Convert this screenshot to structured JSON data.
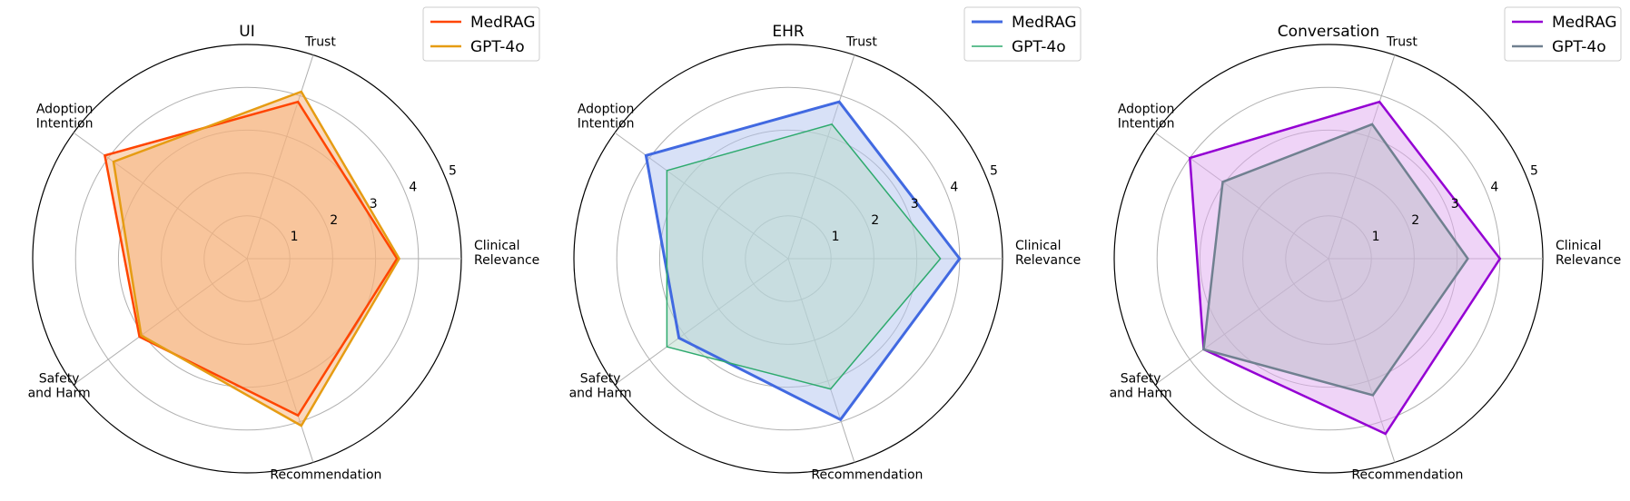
{
  "chart_data": [
    {
      "type": "radar",
      "title": "UI",
      "axes": [
        "Clinical\nRelevance",
        "Trust",
        "Adoption\nIntention",
        "Safety\nand Harm",
        "Recommendation"
      ],
      "rlim": [
        0,
        5
      ],
      "rticks": [
        1,
        2,
        3,
        4,
        5
      ],
      "grid": true,
      "legend_position": "top-right",
      "series": [
        {
          "name": "MedRAG",
          "values": [
            3.5,
            3.85,
            4.1,
            3.1,
            3.85
          ],
          "color": "#ff4500",
          "line_width": 2.5,
          "fill": "#f5b17b"
        },
        {
          "name": "GPT-4o",
          "values": [
            3.55,
            4.1,
            3.85,
            3.05,
            4.1
          ],
          "color": "#e69c13",
          "line_width": 2.5,
          "fill": "#f5b17b"
        }
      ]
    },
    {
      "type": "radar",
      "title": "EHR",
      "axes": [
        "Clinical\nRelevance",
        "Trust",
        "Adoption\nIntention",
        "Safety\nand Harm",
        "Recommendation"
      ],
      "rlim": [
        0,
        5
      ],
      "rticks": [
        1,
        2,
        3,
        4,
        5
      ],
      "grid": true,
      "legend_position": "top-right",
      "series": [
        {
          "name": "MedRAG",
          "values": [
            4.0,
            3.85,
            4.1,
            3.15,
            3.95
          ],
          "color": "#4169e1",
          "line_width": 3,
          "fill": "#b2c3ef"
        },
        {
          "name": "GPT-4o",
          "values": [
            3.55,
            3.3,
            3.5,
            3.5,
            3.2
          ],
          "color": "#2eaa6e",
          "line_width": 1.5,
          "fill": "#b7d9c9"
        }
      ]
    },
    {
      "type": "radar",
      "title": "Conversation",
      "axes": [
        "Clinical\nRelevance",
        "Trust",
        "Adoption\nIntention",
        "Safety\nand Harm",
        "Recommendation"
      ],
      "rlim": [
        0,
        5
      ],
      "rticks": [
        1,
        2,
        3,
        4,
        5
      ],
      "grid": true,
      "legend_position": "top-right",
      "series": [
        {
          "name": "MedRAG",
          "values": [
            4.0,
            3.85,
            4.0,
            3.6,
            4.3
          ],
          "color": "#9400d3",
          "line_width": 2.5,
          "fill": "#dfaaf0"
        },
        {
          "name": "GPT-4o",
          "values": [
            3.25,
            3.3,
            3.05,
            3.6,
            3.35
          ],
          "color": "#708090",
          "line_width": 2.5,
          "fill": "#bcbcc8"
        }
      ]
    }
  ]
}
